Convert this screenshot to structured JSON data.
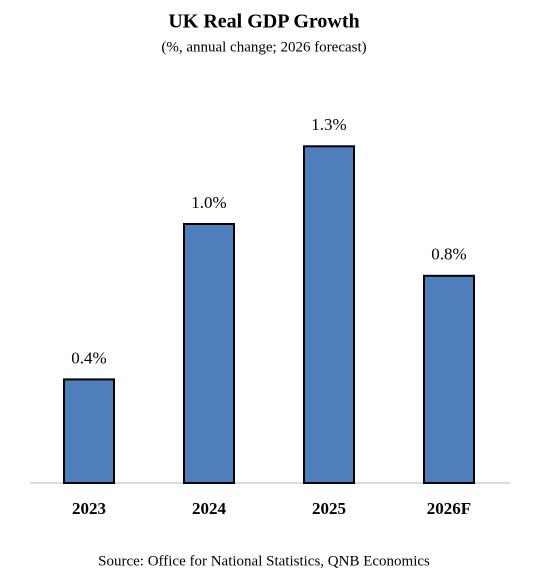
{
  "chart_data": {
    "type": "bar",
    "title": "UK Real GDP Growth",
    "subtitle": "(%, annual change; 2026 forecast)",
    "categories": [
      "2023",
      "2024",
      "2025",
      "2026F"
    ],
    "values": [
      0.4,
      1.0,
      1.3,
      0.8
    ],
    "value_labels": [
      "0.4%",
      "1.0%",
      "1.3%",
      "0.8%"
    ],
    "color": "#4f7ebc",
    "source": "Source: Office for National Statistics, QNB Economics"
  }
}
